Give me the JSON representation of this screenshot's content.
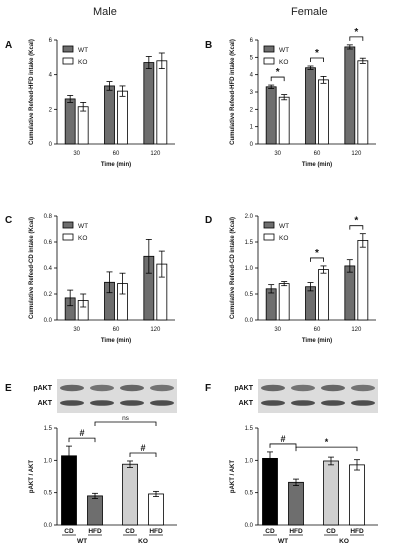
{
  "columns": {
    "male": "Male",
    "female": "Female"
  },
  "colors": {
    "wt": "#6e6e6e",
    "ko": "#ffffff",
    "black": "#000000",
    "gray": "#6e6e6e",
    "light": "#cfcfcf"
  },
  "chart_data": [
    {
      "panel": "A",
      "type": "bar",
      "ylabel": "Cumulative Refeed-HFD intake (Kcal)",
      "xlabel": "Time (min)",
      "categories": [
        "30",
        "60",
        "120"
      ],
      "ylim": [
        0,
        6
      ],
      "yticks": [
        0,
        2,
        4,
        6
      ],
      "series": [
        {
          "name": "WT",
          "values": [
            2.6,
            3.35,
            4.7
          ],
          "errors": [
            0.2,
            0.25,
            0.35
          ]
        },
        {
          "name": "KO",
          "values": [
            2.15,
            3.05,
            4.8
          ],
          "errors": [
            0.25,
            0.3,
            0.45
          ]
        }
      ],
      "significance": []
    },
    {
      "panel": "B",
      "type": "bar",
      "ylabel": "Cumulative Refeed-HFD intake (Kcal)",
      "xlabel": "Time (min)",
      "categories": [
        "30",
        "60",
        "120"
      ],
      "ylim": [
        0,
        6
      ],
      "yticks": [
        0,
        1,
        2,
        3,
        4,
        5,
        6
      ],
      "series": [
        {
          "name": "WT",
          "values": [
            3.3,
            4.4,
            5.6
          ],
          "errors": [
            0.1,
            0.1,
            0.12
          ]
        },
        {
          "name": "KO",
          "values": [
            2.7,
            3.7,
            4.8
          ],
          "errors": [
            0.15,
            0.2,
            0.15
          ]
        }
      ],
      "significance": [
        {
          "group": 0,
          "label": "*"
        },
        {
          "group": 1,
          "label": "*"
        },
        {
          "group": 2,
          "label": "*"
        }
      ]
    },
    {
      "panel": "C",
      "type": "bar",
      "ylabel": "Cumulative Refeed-CD intake (Kcal)",
      "xlabel": "Time (min)",
      "categories": [
        "30",
        "60",
        "120"
      ],
      "ylim": [
        0,
        0.8
      ],
      "yticks": [
        0.0,
        0.2,
        0.4,
        0.6,
        0.8
      ],
      "series": [
        {
          "name": "WT",
          "values": [
            0.17,
            0.29,
            0.49
          ],
          "errors": [
            0.06,
            0.08,
            0.13
          ]
        },
        {
          "name": "KO",
          "values": [
            0.15,
            0.28,
            0.43
          ],
          "errors": [
            0.05,
            0.08,
            0.1
          ]
        }
      ],
      "significance": []
    },
    {
      "panel": "D",
      "type": "bar",
      "ylabel": "Cumulative Refeed-CD intake (Kcal)",
      "xlabel": "Time (min)",
      "categories": [
        "30",
        "60",
        "120"
      ],
      "ylim": [
        0,
        2.0
      ],
      "yticks": [
        0.0,
        0.5,
        1.0,
        1.5,
        2.0
      ],
      "series": [
        {
          "name": "WT",
          "values": [
            0.6,
            0.64,
            1.04
          ],
          "errors": [
            0.08,
            0.08,
            0.12
          ]
        },
        {
          "name": "KO",
          "values": [
            0.7,
            0.97,
            1.53
          ],
          "errors": [
            0.04,
            0.07,
            0.13
          ]
        }
      ],
      "significance": [
        {
          "group": 1,
          "label": "*"
        },
        {
          "group": 2,
          "label": "*"
        }
      ]
    },
    {
      "panel": "E",
      "type": "bar",
      "ylabel": "pAKT / AKT",
      "blot_labels": [
        "pAKT",
        "AKT"
      ],
      "ylim": [
        0,
        1.5
      ],
      "yticks": [
        0.0,
        0.5,
        1.0,
        1.5
      ],
      "bars": [
        {
          "label": "CD",
          "value": 1.07,
          "error": 0.15,
          "fill": "black"
        },
        {
          "label": "HFD",
          "value": 0.45,
          "error": 0.04,
          "fill": "gray"
        },
        {
          "label": "CD",
          "value": 0.94,
          "error": 0.05,
          "fill": "light"
        },
        {
          "label": "HFD",
          "value": 0.48,
          "error": 0.04,
          "fill": "white"
        }
      ],
      "groups": [
        "WT",
        "KO"
      ],
      "significance": [
        {
          "from": 0,
          "to": 1,
          "label": "#"
        },
        {
          "from": 1,
          "to": 3,
          "label": "ns"
        },
        {
          "from": 2,
          "to": 3,
          "label": "#"
        }
      ]
    },
    {
      "panel": "F",
      "type": "bar",
      "ylabel": "pAKT / AKT",
      "blot_labels": [
        "pAKT",
        "AKT"
      ],
      "ylim": [
        0,
        1.5
      ],
      "yticks": [
        0.0,
        0.5,
        1.0,
        1.5
      ],
      "bars": [
        {
          "label": "CD",
          "value": 1.03,
          "error": 0.1,
          "fill": "black"
        },
        {
          "label": "HFD",
          "value": 0.66,
          "error": 0.05,
          "fill": "gray"
        },
        {
          "label": "CD",
          "value": 0.99,
          "error": 0.06,
          "fill": "light"
        },
        {
          "label": "HFD",
          "value": 0.93,
          "error": 0.08,
          "fill": "white"
        }
      ],
      "groups": [
        "WT",
        "KO"
      ],
      "significance": [
        {
          "from": 0,
          "to": 1,
          "label": "#"
        },
        {
          "from": 1,
          "to": 3,
          "label": "*"
        }
      ]
    }
  ]
}
